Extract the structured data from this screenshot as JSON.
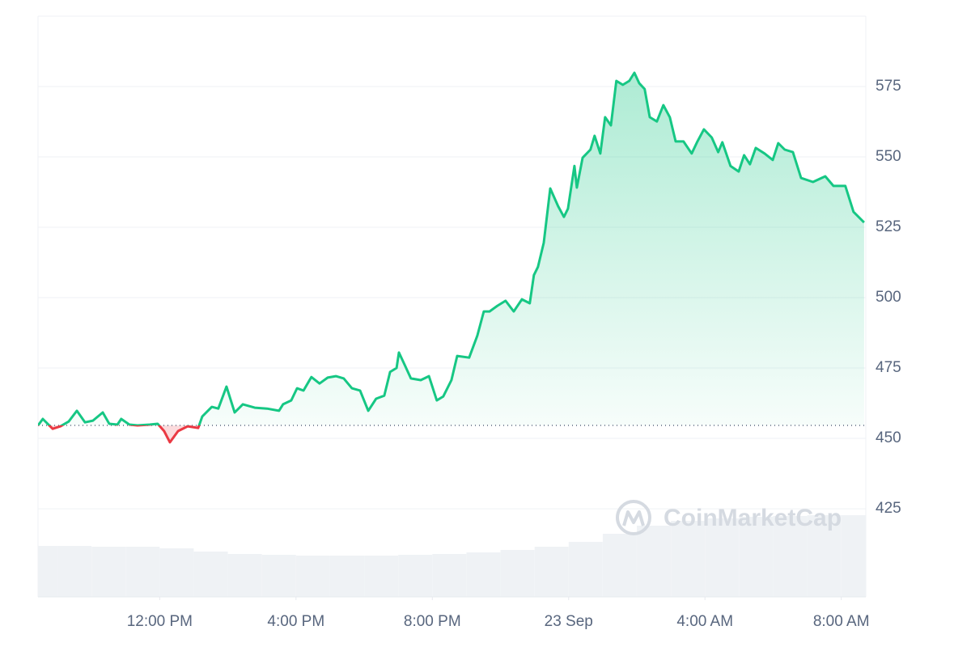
{
  "chart_data": {
    "type": "line",
    "watermark": "CoinMarketCap",
    "x": [
      8.43,
      8.57,
      8.86,
      9.09,
      9.33,
      9.57,
      9.81,
      10.04,
      10.33,
      10.52,
      10.76,
      10.87,
      11.11,
      11.35,
      11.71,
      11.94,
      12.13,
      12.3,
      12.54,
      12.82,
      13.13,
      13.25,
      13.53,
      13.72,
      13.96,
      14.2,
      14.44,
      14.79,
      15.15,
      15.5,
      15.62,
      15.86,
      16.03,
      16.22,
      16.45,
      16.69,
      16.93,
      17.17,
      17.4,
      17.64,
      17.88,
      18.12,
      18.35,
      18.59,
      18.76,
      18.95,
      19.02,
      19.18,
      19.37,
      19.66,
      19.9,
      20.13,
      20.32,
      20.56,
      20.73,
      21.08,
      21.32,
      21.51,
      21.68,
      21.91,
      22.15,
      22.39,
      22.63,
      22.86,
      22.98,
      23.1,
      23.27,
      23.46,
      23.69,
      23.86,
      23.98,
      24.17,
      24.24,
      24.41,
      24.64,
      24.76,
      24.93,
      25.07,
      25.24,
      25.4,
      25.59,
      25.78,
      25.93,
      26.07,
      26.23,
      26.38,
      26.59,
      26.78,
      26.97,
      27.14,
      27.37,
      27.61,
      27.78,
      27.97,
      28.2,
      28.39,
      28.51,
      28.75,
      28.99,
      29.15,
      29.32,
      29.49,
      29.75,
      29.99,
      30.15,
      30.34,
      30.58,
      30.82,
      31.17,
      31.53,
      31.77,
      32.12,
      32.36,
      32.67
    ],
    "series": [
      {
        "color": "#16c784",
        "below_color": "#ea3943",
        "values": [
          454.6,
          456.9,
          453.4,
          454.3,
          456.0,
          459.8,
          455.7,
          456.3,
          459.2,
          455.2,
          454.9,
          456.9,
          454.9,
          454.6,
          454.9,
          455.2,
          452.6,
          448.6,
          452.6,
          454.3,
          453.7,
          457.8,
          461.2,
          460.6,
          468.4,
          459.2,
          462.1,
          460.9,
          460.6,
          459.8,
          462.1,
          463.5,
          467.8,
          467.0,
          471.8,
          469.5,
          471.6,
          472.1,
          471.3,
          467.8,
          467.0,
          459.8,
          464.1,
          465.2,
          473.6,
          475.0,
          480.5,
          476.4,
          471.3,
          470.7,
          472.1,
          463.5,
          464.9,
          470.7,
          479.3,
          478.7,
          486.5,
          495.1,
          495.1,
          497.1,
          498.9,
          495.1,
          499.4,
          498.0,
          508.0,
          510.9,
          519.5,
          538.8,
          532.5,
          528.7,
          531.6,
          546.8,
          539.1,
          549.7,
          552.6,
          557.5,
          551.2,
          564.1,
          561.2,
          577.0,
          575.6,
          577.0,
          579.9,
          576.2,
          574.1,
          564.1,
          562.6,
          568.4,
          564.1,
          555.5,
          555.5,
          551.2,
          555.5,
          559.8,
          556.9,
          551.7,
          555.2,
          546.8,
          544.8,
          550.6,
          547.4,
          553.2,
          551.2,
          548.9,
          554.9,
          552.6,
          551.7,
          542.5,
          541.1,
          543.1,
          539.7,
          539.7,
          530.5,
          526.7
        ]
      }
    ],
    "reference_line": 454.6,
    "volume": {
      "color": "#eff2f5",
      "x": [
        8.5,
        9.5,
        10.5,
        11.5,
        12.5,
        13.5,
        14.5,
        15.5,
        16.5,
        17.5,
        18.5,
        19.5,
        20.5,
        21.5,
        22.5,
        23.5,
        24.5,
        25.5,
        26.5,
        27.5,
        28.5,
        29.5,
        30.5,
        31.5,
        32.5
      ],
      "values": [
        63,
        63,
        62,
        62,
        60,
        56,
        53,
        52,
        51,
        51,
        51,
        52,
        53,
        55,
        58,
        62,
        68,
        78,
        88,
        94,
        97,
        99,
        100,
        101,
        101
      ]
    },
    "volume_ylim": [
      0,
      718
    ],
    "xlim": [
      8.43,
      32.72
    ],
    "xticks": [
      {
        "value": 12,
        "label": "12:00 PM"
      },
      {
        "value": 16,
        "label": "4:00 PM"
      },
      {
        "value": 20,
        "label": "8:00 PM"
      },
      {
        "value": 24,
        "label": "23 Sep"
      },
      {
        "value": 28,
        "label": "4:00 AM"
      },
      {
        "value": 32,
        "label": "8:00 AM"
      }
    ],
    "ylim": [
      393.7,
      600
    ],
    "yticks": [
      425,
      450,
      475,
      500,
      525,
      550,
      575
    ],
    "grid": true
  }
}
